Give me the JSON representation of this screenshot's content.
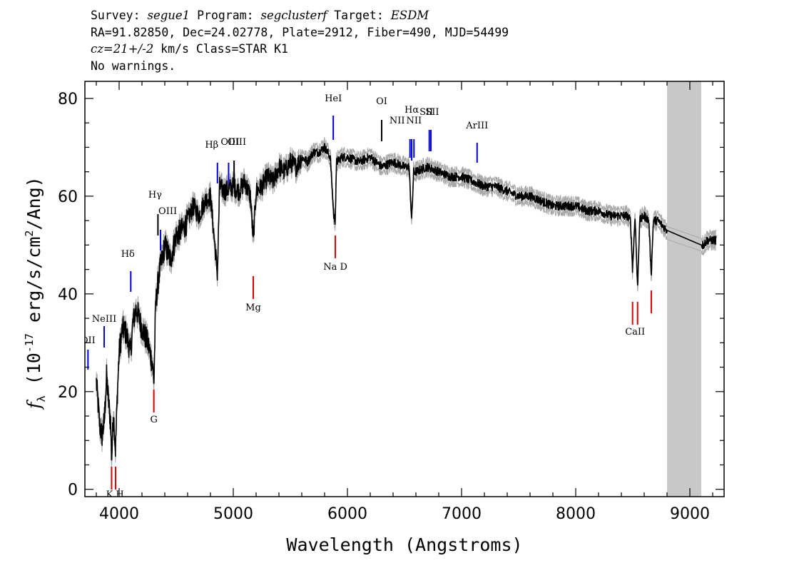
{
  "header": {
    "survey_label": "Survey: ",
    "survey": "segue1",
    "program_label": " Program: ",
    "program": "segclusterf",
    "target_label": " Target: ",
    "target": "ESDM",
    "line2": "RA=91.82850, Dec=24.02778, Plate=2912, Fiber=490, MJD=54499",
    "cz_value": "cz=21+/-2",
    "line3_rest": " km/s Class=STAR K1",
    "line4": "No warnings."
  },
  "chart_data": {
    "type": "line",
    "xlabel": "Wavelength (Angstroms)",
    "ylabel": "f_λ (10^-17 erg/s/cm^2/Ang)",
    "xlim": [
      3700,
      9300
    ],
    "ylim": [
      -1.5,
      83.5
    ],
    "x_ticks": [
      4000,
      5000,
      6000,
      7000,
      8000,
      9000
    ],
    "y_ticks": [
      0,
      20,
      40,
      60,
      80
    ],
    "grey_band": [
      8800,
      9100
    ],
    "colors": {
      "spectrum": "#000000",
      "error": "#a8a8a8",
      "emission": "#0000dd",
      "absorption": "#dd0000",
      "band": "#c8c8c8"
    },
    "series": [
      {
        "x": [
          3800,
          3830,
          3850,
          3870,
          3890,
          3910,
          3925,
          3934,
          3950,
          3968,
          3985,
          4000,
          4030,
          4060,
          4101,
          4120,
          4150,
          4200,
          4250,
          4290,
          4305,
          4320,
          4350,
          4400,
          4450,
          4500,
          4550,
          4600,
          4650,
          4700,
          4750,
          4800,
          4861,
          4880,
          4920,
          5000,
          5050,
          5100,
          5150,
          5175,
          5200,
          5250,
          5300,
          5350,
          5400,
          5450,
          5500,
          5550,
          5600,
          5650,
          5700,
          5750,
          5800,
          5850,
          5880,
          5893,
          5905,
          5950,
          6000,
          6100,
          6200,
          6300,
          6400,
          6500,
          6540,
          6563,
          6580,
          6600,
          6700,
          6800,
          6900,
          7000,
          7100,
          7200,
          7300,
          7400,
          7500,
          7600,
          7700,
          7800,
          7900,
          8000,
          8100,
          8200,
          8300,
          8400,
          8450,
          8480,
          8498,
          8520,
          8542,
          8560,
          8600,
          8640,
          8662,
          8680,
          8720,
          8760,
          8800,
          9100,
          9120,
          9150,
          9200,
          9230
        ],
        "y": [
          22,
          13,
          11,
          14,
          23,
          17,
          14,
          6,
          16,
          8,
          20,
          28,
          33,
          32,
          28,
          34,
          37,
          33,
          30,
          26,
          22,
          38,
          44,
          50,
          47,
          52,
          53,
          55,
          58,
          56,
          59,
          60,
          44,
          62,
          61,
          62,
          61,
          63,
          60,
          51,
          61,
          62,
          64,
          63,
          66,
          65,
          67,
          66,
          68,
          67,
          69,
          69,
          70,
          68,
          56,
          55,
          67,
          68,
          68,
          67,
          68,
          66,
          67,
          66,
          66,
          55,
          65,
          65,
          66,
          65,
          64,
          64,
          63,
          62,
          62,
          61,
          60,
          60,
          59,
          58,
          58,
          58,
          57,
          57,
          56,
          56,
          56,
          55,
          45,
          56,
          41,
          55,
          56,
          55,
          44,
          55,
          55,
          54,
          53,
          50,
          50,
          51,
          51,
          51
        ]
      }
    ],
    "emission_lines": [
      {
        "label": "OII",
        "wave": 3727
      },
      {
        "label": "NeIII",
        "wave": 3869
      },
      {
        "label": "Hδ",
        "wave": 4102
      },
      {
        "label": "Hγ",
        "wave": 4340
      },
      {
        "label": "OIII",
        "wave": 4363
      },
      {
        "label": "Hβ",
        "wave": 4861
      },
      {
        "label": "OIII",
        "wave": 4959
      },
      {
        "label": "OIII",
        "wave": 5007
      },
      {
        "label": "HeI",
        "wave": 5876
      },
      {
        "label": "OI",
        "wave": 6300
      },
      {
        "label": "NII",
        "wave": 6548
      },
      {
        "label": "Hα",
        "wave": 6563
      },
      {
        "label": "NII",
        "wave": 6583
      },
      {
        "label": "SII",
        "wave": 6717
      },
      {
        "label": "SII",
        "wave": 6731
      },
      {
        "label": "ArIII",
        "wave": 7136
      }
    ],
    "absorption_lines": [
      {
        "label": "K",
        "wave": 3934
      },
      {
        "label": "H",
        "wave": 3969
      },
      {
        "label": "G",
        "wave": 4304
      },
      {
        "label": "Mg",
        "wave": 5175
      },
      {
        "label": "Na D",
        "wave": 5894
      },
      {
        "label": "CaII",
        "wave": 8498
      },
      {
        "label": "CaII",
        "wave": 8542
      },
      {
        "label": "CaII",
        "wave": 8662
      }
    ]
  }
}
